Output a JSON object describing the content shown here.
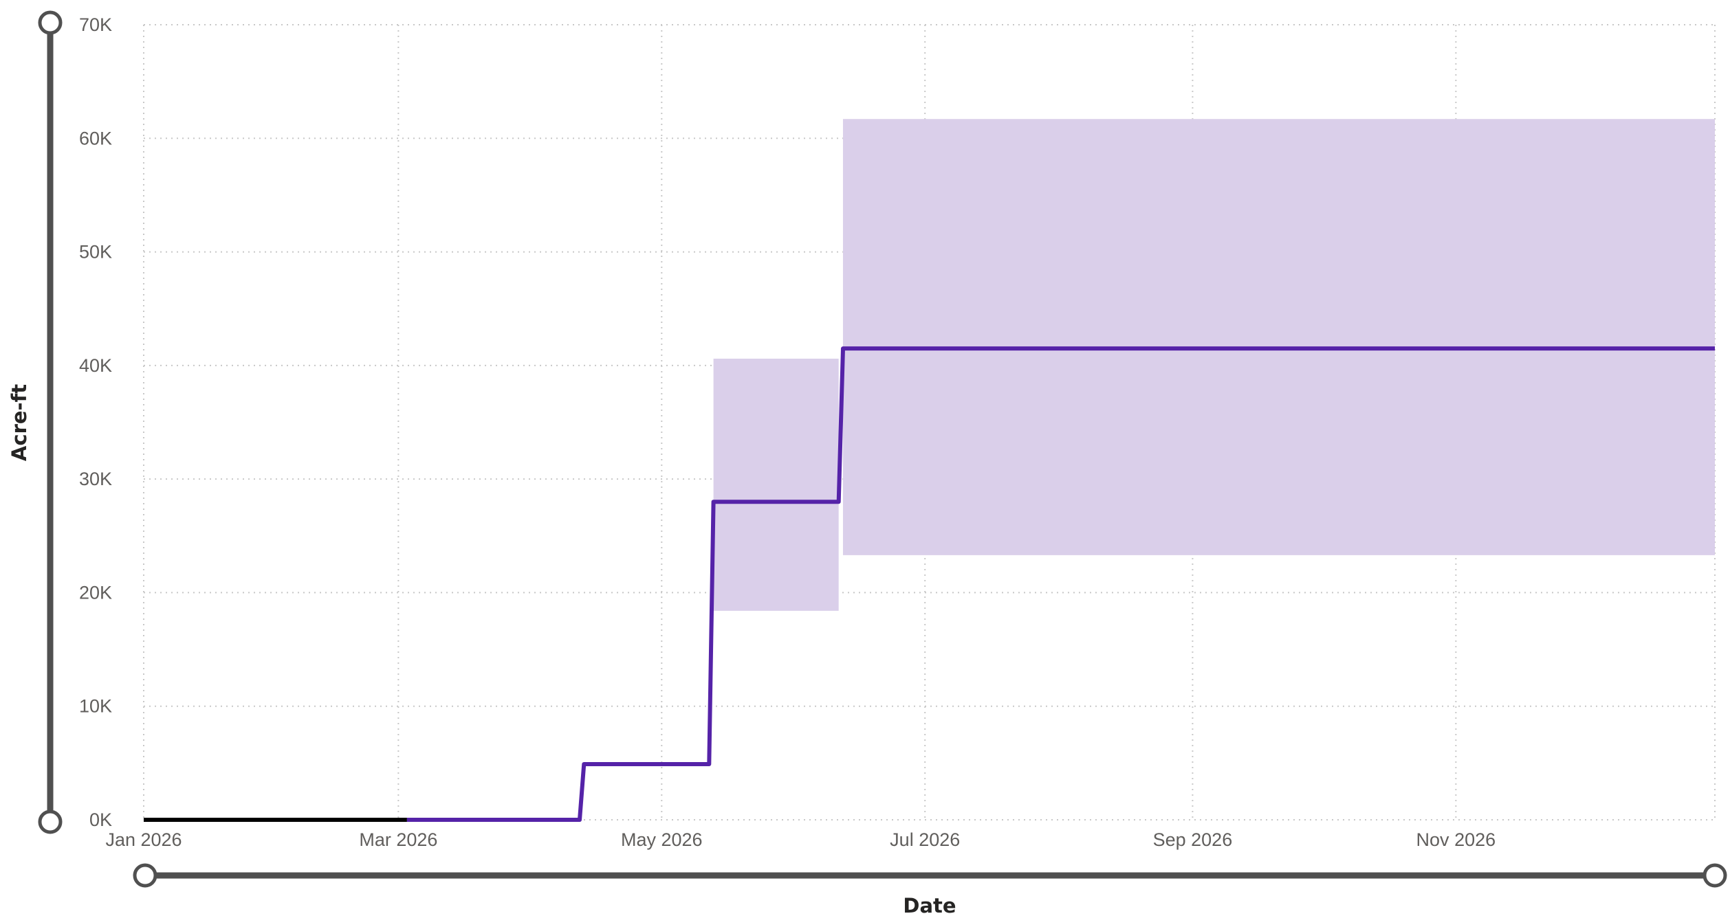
{
  "colors": {
    "series": "#5523a8",
    "actual": "#000000",
    "band": "#dacfea",
    "grid": "#c8c8c8",
    "slider": "#505050"
  },
  "chart_data": {
    "type": "line",
    "xlabel": "Date",
    "ylabel": "Acre-ft",
    "xlim": [
      "2026-01-01",
      "2026-12-31"
    ],
    "ylim": [
      0,
      70000
    ],
    "x_ticks": [
      {
        "label": "Jan 2026",
        "date": "2026-01-01"
      },
      {
        "label": "Mar 2026",
        "date": "2026-03-01"
      },
      {
        "label": "May 2026",
        "date": "2026-05-01"
      },
      {
        "label": "Jul 2026",
        "date": "2026-07-01"
      },
      {
        "label": "Sep 2026",
        "date": "2026-09-01"
      },
      {
        "label": "Nov 2026",
        "date": "2026-11-01"
      }
    ],
    "y_ticks": [
      {
        "label": "0K",
        "value": 0
      },
      {
        "label": "10K",
        "value": 10000
      },
      {
        "label": "20K",
        "value": 20000
      },
      {
        "label": "30K",
        "value": 30000
      },
      {
        "label": "40K",
        "value": 40000
      },
      {
        "label": "50K",
        "value": 50000
      },
      {
        "label": "60K",
        "value": 60000
      },
      {
        "label": "70K",
        "value": 70000
      }
    ],
    "grid": true,
    "series": [
      {
        "role": "actual",
        "points": [
          [
            "2026-01-01",
            0
          ],
          [
            "2026-03-03",
            0
          ]
        ]
      },
      {
        "role": "forecast",
        "points": [
          [
            "2026-03-03",
            0
          ],
          [
            "2026-04-12",
            0
          ],
          [
            "2026-04-13",
            4900
          ],
          [
            "2026-05-12",
            4900
          ],
          [
            "2026-05-13",
            28000
          ],
          [
            "2026-06-11",
            28000
          ],
          [
            "2026-06-12",
            41500
          ],
          [
            "2026-12-31",
            41500
          ]
        ]
      }
    ],
    "band": [
      {
        "from": "2026-05-13",
        "to": "2026-06-11",
        "low": 18400,
        "high": 40600
      },
      {
        "from": "2026-06-12",
        "to": "2026-12-31",
        "low": 23300,
        "high": 61700
      }
    ]
  }
}
